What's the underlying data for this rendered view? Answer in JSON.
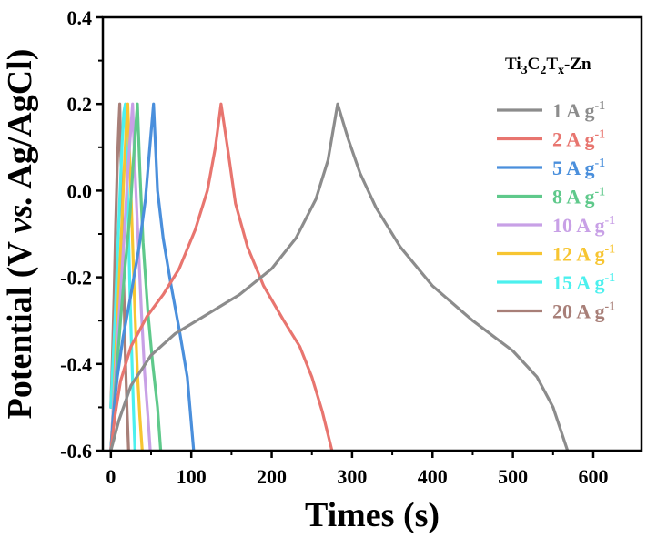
{
  "chart_data": {
    "type": "line",
    "title": "",
    "xlabel": "Times (s)",
    "ylabel_parts": [
      "Potential (V ",
      "vs.",
      " Ag/AgCl)"
    ],
    "xlim": [
      -10,
      660
    ],
    "ylim": [
      -0.6,
      0.4
    ],
    "xticks": [
      0,
      100,
      200,
      300,
      400,
      500,
      600
    ],
    "yticks": [
      -0.6,
      -0.4,
      -0.2,
      0.0,
      0.2,
      0.4
    ],
    "ytick_labels": [
      "-0.6",
      "-0.4",
      "-0.2",
      "0.0",
      "0.2",
      "0.4"
    ],
    "legend_title": {
      "base": "Ti",
      "s1": "3",
      "mid": "C",
      "s2": "2",
      "t": "T",
      "s3": "x",
      "rest": "-Zn"
    },
    "legend_position": "top-right",
    "series": [
      {
        "name": "1 A g-1",
        "label": "1 A g",
        "sup": "-1",
        "color": "#8c8c8c",
        "x": [
          0,
          10,
          25,
          50,
          80,
          120,
          160,
          200,
          230,
          255,
          270,
          282,
          295,
          310,
          330,
          360,
          400,
          450,
          500,
          530,
          550,
          568
        ],
        "y": [
          -0.6,
          -0.53,
          -0.45,
          -0.38,
          -0.33,
          -0.285,
          -0.24,
          -0.18,
          -0.11,
          -0.02,
          0.07,
          0.2,
          0.12,
          0.04,
          -0.04,
          -0.13,
          -0.22,
          -0.3,
          -0.37,
          -0.43,
          -0.5,
          -0.6
        ]
      },
      {
        "name": "2 A g-1",
        "label": "2 A g",
        "sup": "-1",
        "color": "#e8756f",
        "x": [
          0,
          5,
          12,
          25,
          45,
          65,
          85,
          105,
          120,
          130,
          137,
          145,
          155,
          170,
          190,
          215,
          235,
          250,
          263,
          275
        ],
        "y": [
          -0.6,
          -0.52,
          -0.44,
          -0.36,
          -0.29,
          -0.24,
          -0.18,
          -0.09,
          0.0,
          0.1,
          0.2,
          0.1,
          -0.03,
          -0.13,
          -0.22,
          -0.3,
          -0.36,
          -0.43,
          -0.51,
          -0.6
        ]
      },
      {
        "name": "5 A g-1",
        "label": "5 A g",
        "sup": "-1",
        "color": "#4a8fdc",
        "x": [
          0,
          3,
          8,
          15,
          25,
          35,
          43,
          48,
          53,
          58,
          65,
          75,
          85,
          95,
          103
        ],
        "y": [
          -0.6,
          -0.52,
          -0.43,
          -0.34,
          -0.24,
          -0.13,
          -0.02,
          0.09,
          0.2,
          0.0,
          -0.11,
          -0.22,
          -0.32,
          -0.43,
          -0.6
        ]
      },
      {
        "name": "8 A g-1",
        "label": "8 A g",
        "sup": "-1",
        "color": "#5fc98b",
        "x": [
          0,
          3,
          7,
          12,
          18,
          24,
          28,
          31,
          33,
          36,
          40,
          46,
          52,
          58,
          62
        ],
        "y": [
          -0.6,
          -0.52,
          -0.42,
          -0.3,
          -0.17,
          -0.05,
          0.07,
          0.15,
          0.2,
          0.05,
          -0.12,
          -0.28,
          -0.4,
          -0.5,
          -0.6
        ]
      },
      {
        "name": "10 A g-1",
        "label": "10 A g",
        "sup": "-1",
        "color": "#c8a0e6",
        "x": [
          0,
          3,
          7,
          12,
          17,
          21,
          24,
          27,
          30,
          34,
          38,
          42,
          46,
          49
        ],
        "y": [
          -0.6,
          -0.5,
          -0.38,
          -0.24,
          -0.09,
          0.04,
          0.12,
          0.2,
          0.05,
          -0.12,
          -0.28,
          -0.42,
          -0.52,
          -0.6
        ]
      },
      {
        "name": "12 A g-1",
        "label": "12 A g",
        "sup": "-1",
        "color": "#f7c531",
        "x": [
          0,
          3,
          6,
          10,
          14,
          17,
          19,
          21,
          24,
          27,
          30,
          33,
          36,
          39
        ],
        "y": [
          -0.6,
          -0.5,
          -0.38,
          -0.22,
          -0.06,
          0.07,
          0.14,
          0.2,
          0.05,
          -0.12,
          -0.28,
          -0.42,
          -0.52,
          -0.6
        ]
      },
      {
        "name": "15 A g-1",
        "label": "15 A g",
        "sup": "-1",
        "color": "#4cf0ee",
        "x": [
          0,
          2,
          5,
          8,
          11,
          14,
          16,
          18,
          20,
          22,
          24,
          26,
          28,
          30
        ],
        "y": [
          -0.5,
          -0.42,
          -0.3,
          -0.16,
          -0.02,
          0.11,
          0.18,
          0.2,
          0.05,
          -0.1,
          -0.25,
          -0.38,
          -0.5,
          -0.6
        ]
      },
      {
        "name": "20 A g-1",
        "label": "20 A g",
        "sup": "-1",
        "color": "#a87f78",
        "x": [
          0,
          2,
          4,
          6,
          8,
          10,
          11,
          12,
          14,
          16,
          18,
          20,
          22
        ],
        "y": [
          -0.5,
          -0.38,
          -0.24,
          -0.08,
          0.06,
          0.16,
          0.2,
          0.12,
          -0.05,
          -0.22,
          -0.38,
          -0.5,
          -0.6
        ]
      }
    ]
  }
}
